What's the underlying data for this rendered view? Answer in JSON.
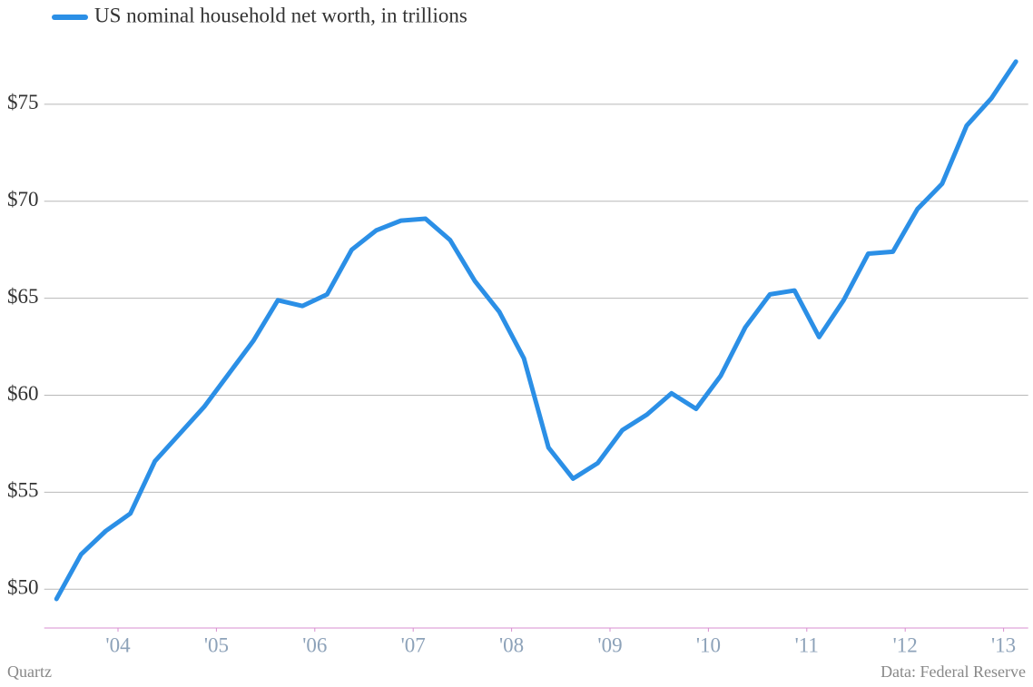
{
  "chart_data": {
    "type": "line",
    "x": [
      2003.375,
      2003.625,
      2003.875,
      2004.125,
      2004.375,
      2004.625,
      2004.875,
      2005.125,
      2005.375,
      2005.625,
      2005.875,
      2006.125,
      2006.375,
      2006.625,
      2006.875,
      2007.125,
      2007.375,
      2007.625,
      2007.875,
      2008.125,
      2008.375,
      2008.625,
      2008.875,
      2009.125,
      2009.375,
      2009.625,
      2009.875,
      2010.125,
      2010.375,
      2010.625,
      2010.875,
      2011.125,
      2011.375,
      2011.625,
      2011.875,
      2012.125,
      2012.375,
      2012.625,
      2012.875,
      2013.125
    ],
    "series": [
      {
        "name": "US nominal household net worth, in trillions",
        "color": "#2b8fe6",
        "values": [
          49.5,
          51.8,
          53.0,
          53.9,
          56.6,
          58.0,
          59.4,
          61.1,
          62.8,
          64.9,
          64.6,
          65.2,
          67.5,
          68.5,
          69.0,
          69.1,
          68.0,
          65.9,
          64.3,
          61.9,
          57.3,
          55.7,
          56.5,
          58.2,
          59.0,
          60.1,
          59.3,
          61.0,
          63.5,
          65.2,
          65.4,
          63.0,
          64.9,
          67.3,
          67.4,
          69.6,
          70.9,
          73.9,
          75.3,
          77.2
        ]
      }
    ],
    "xlim": [
      2003.25,
      2013.25
    ],
    "xticks": [
      {
        "value": 2004,
        "label": "'04"
      },
      {
        "value": 2005,
        "label": "'05"
      },
      {
        "value": 2006,
        "label": "'06"
      },
      {
        "value": 2007,
        "label": "'07"
      },
      {
        "value": 2008,
        "label": "'08"
      },
      {
        "value": 2009,
        "label": "'09"
      },
      {
        "value": 2010,
        "label": "'10"
      },
      {
        "value": 2011,
        "label": "'11"
      },
      {
        "value": 2012,
        "label": "'12"
      },
      {
        "value": 2013,
        "label": "'13"
      }
    ],
    "ylim": [
      48,
      80
    ],
    "yticks": [
      {
        "value": 50,
        "label": "$50"
      },
      {
        "value": 55,
        "label": "$55"
      },
      {
        "value": 60,
        "label": "$60"
      },
      {
        "value": 65,
        "label": "$65"
      },
      {
        "value": 70,
        "label": "$70"
      },
      {
        "value": 75,
        "label": "$75"
      }
    ],
    "grid": true,
    "credit": "Quartz",
    "source": "Data: Federal Reserve"
  }
}
